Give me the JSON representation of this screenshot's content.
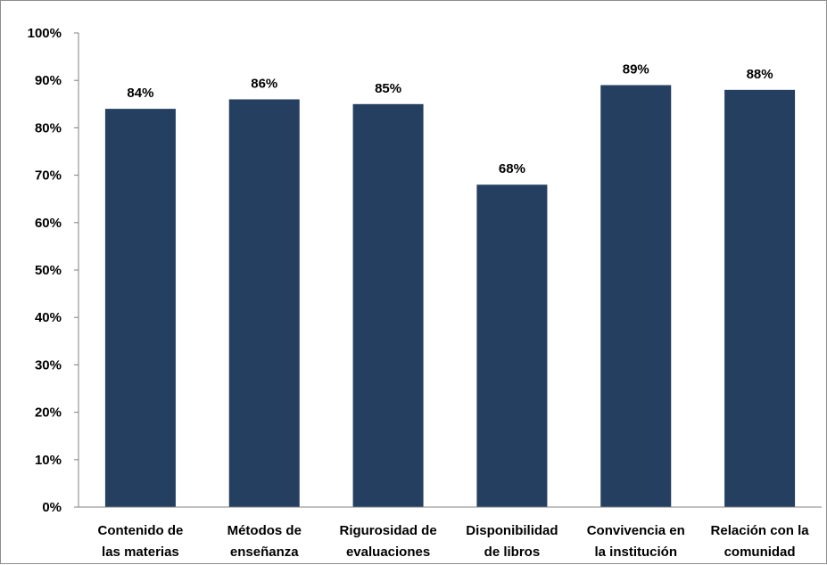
{
  "chart_data": {
    "type": "bar",
    "categories": [
      [
        "Contenido de",
        "las materias"
      ],
      [
        "Métodos de",
        "enseñanza"
      ],
      [
        "Rigurosidad de",
        "evaluaciones"
      ],
      [
        "Disponibilidad",
        "de libros"
      ],
      [
        "Convivencia en",
        "la institución"
      ],
      [
        "Relación con la",
        "comunidad"
      ]
    ],
    "values": [
      84,
      86,
      85,
      68,
      89,
      88
    ],
    "data_labels": [
      "84%",
      "86%",
      "85%",
      "68%",
      "89%",
      "88%"
    ],
    "ylim": [
      0,
      100
    ],
    "yticks": [
      0,
      10,
      20,
      30,
      40,
      50,
      60,
      70,
      80,
      90,
      100
    ],
    "ytick_labels": [
      "0%",
      "10%",
      "20%",
      "30%",
      "40%",
      "50%",
      "60%",
      "70%",
      "80%",
      "90%",
      "100%"
    ],
    "title": "",
    "xlabel": "",
    "ylabel": "",
    "grid": false,
    "legend": "none",
    "bar_color": "#243F60",
    "axis_color": "#808080"
  }
}
